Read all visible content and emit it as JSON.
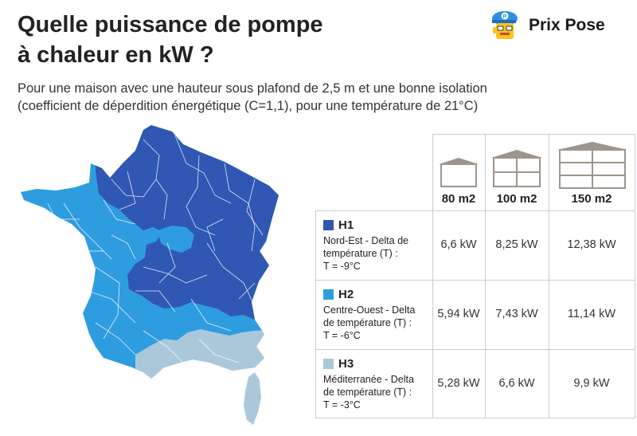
{
  "title_line1": "Quelle puissance de pompe",
  "title_line2": "à chaleur en kW ?",
  "subtitle_line1": "Pour une maison avec une hauteur sous plafond de 2,5 m et une bonne isolation",
  "subtitle_line2": "(coefficient de déperdition énergétique (C=1,1), pour une température de 21°C)",
  "brand": {
    "name": "Prix Pose",
    "icon": "mascot-icon"
  },
  "colors": {
    "h1": "#2f57b3",
    "h2": "#2e9de0",
    "h3": "#aac8d9",
    "house": "#9e958c",
    "border": "#c9ccd2"
  },
  "sizes": [
    "80 m2",
    "100 m2",
    "150 m2"
  ],
  "zones": [
    {
      "code": "H1",
      "desc_line1": "Nord-Est - Delta de",
      "desc_line2": "température (T) :",
      "desc_line3": "T = -9°C",
      "values": [
        "6,6 kW",
        "8,25 kW",
        "12,38 kW"
      ]
    },
    {
      "code": "H2",
      "desc_line1": "Centre-Ouest - Delta",
      "desc_line2": "de température (T) :",
      "desc_line3": "T = -6°C",
      "values": [
        "5,94 kW",
        "7,43 kW",
        "11,14 kW"
      ]
    },
    {
      "code": "H3",
      "desc_line1": "Méditerranée - Delta",
      "desc_line2": "de température (T) :",
      "desc_line3": "T = -3°C",
      "values": [
        "5,28 kW",
        "6,6 kW",
        "9,9 kW"
      ]
    }
  ]
}
